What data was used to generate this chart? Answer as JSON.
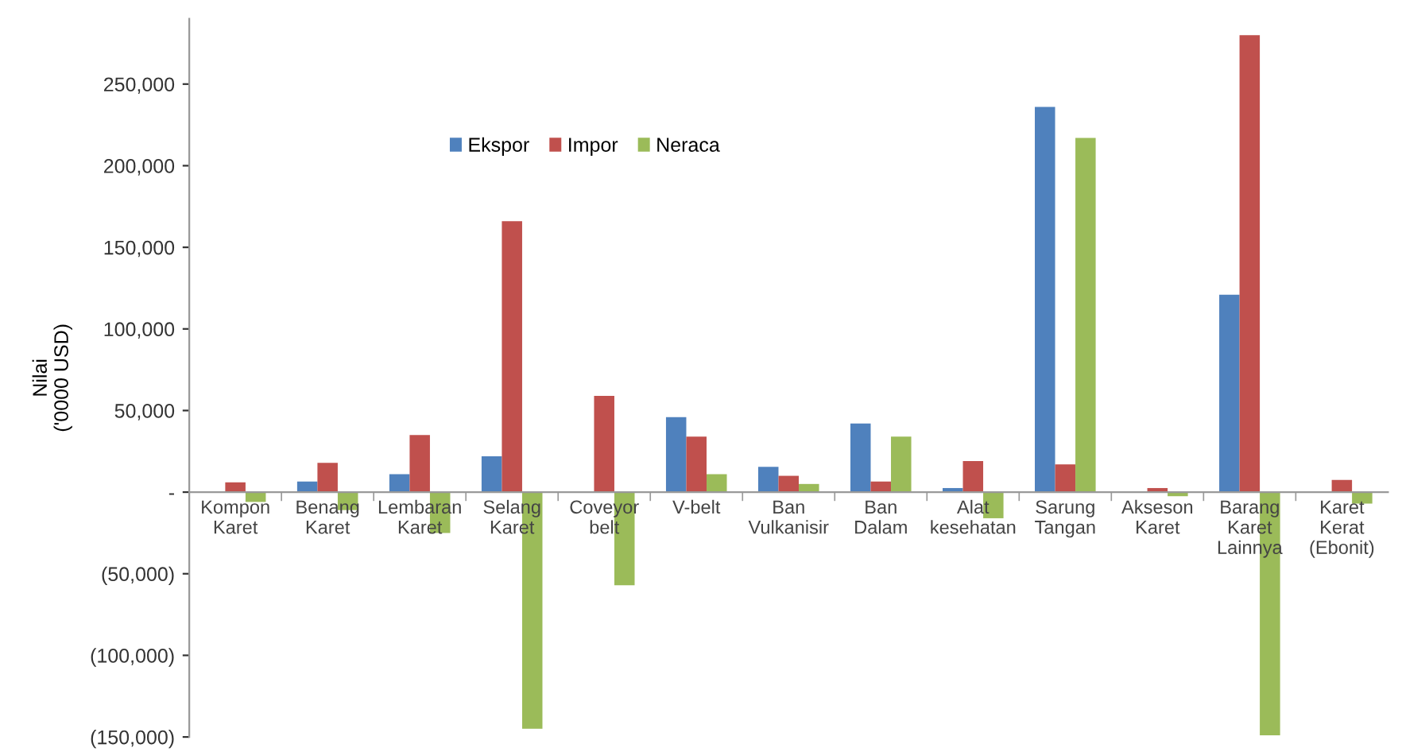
{
  "chart_data": {
    "type": "bar",
    "ylabel": "Nilai\n('0000 USD)",
    "categories": [
      "Kompon\nKaret",
      "Benang\nKaret",
      "Lembaran\nKaret",
      "Selang\nKaret",
      "Coveyor\nbelt",
      "V-belt",
      "Ban\nVulkanisir",
      "Ban\nDalam",
      "Alat\nkesehatan",
      "Sarung\nTangan",
      "Akseson\nKaret",
      "Barang\nKaret\nLainnya",
      "Karet\nKerat\n(Ebonit)"
    ],
    "series": [
      {
        "name": "Ekspor",
        "color": "#4f81bd",
        "values": [
          0,
          6500,
          11000,
          22000,
          0,
          46000,
          15500,
          42000,
          2500,
          236000,
          0,
          121000,
          0
        ]
      },
      {
        "name": "Impor",
        "color": "#c0504d",
        "values": [
          6000,
          18000,
          35000,
          166000,
          59000,
          34000,
          10000,
          6500,
          19000,
          17000,
          2500,
          280000,
          7500
        ]
      },
      {
        "name": "Neraca",
        "color": "#9bbb59",
        "values": [
          -6000,
          -11000,
          -25000,
          -145000,
          -57000,
          11000,
          5000,
          34000,
          -16000,
          217000,
          -2500,
          -149000,
          -7000
        ]
      }
    ],
    "ylim": [
      -150000,
      290000
    ],
    "yticks": [
      {
        "value": -150000,
        "label": "(150,000)"
      },
      {
        "value": -100000,
        "label": "(100,000)"
      },
      {
        "value": -50000,
        "label": "(50,000)"
      },
      {
        "value": 0,
        "label": "-"
      },
      {
        "value": 50000,
        "label": "50,000"
      },
      {
        "value": 100000,
        "label": "100,000"
      },
      {
        "value": 150000,
        "label": "150,000"
      },
      {
        "value": 200000,
        "label": "200,000"
      },
      {
        "value": 250000,
        "label": "250,000"
      }
    ],
    "grid": false,
    "legend": "top"
  }
}
